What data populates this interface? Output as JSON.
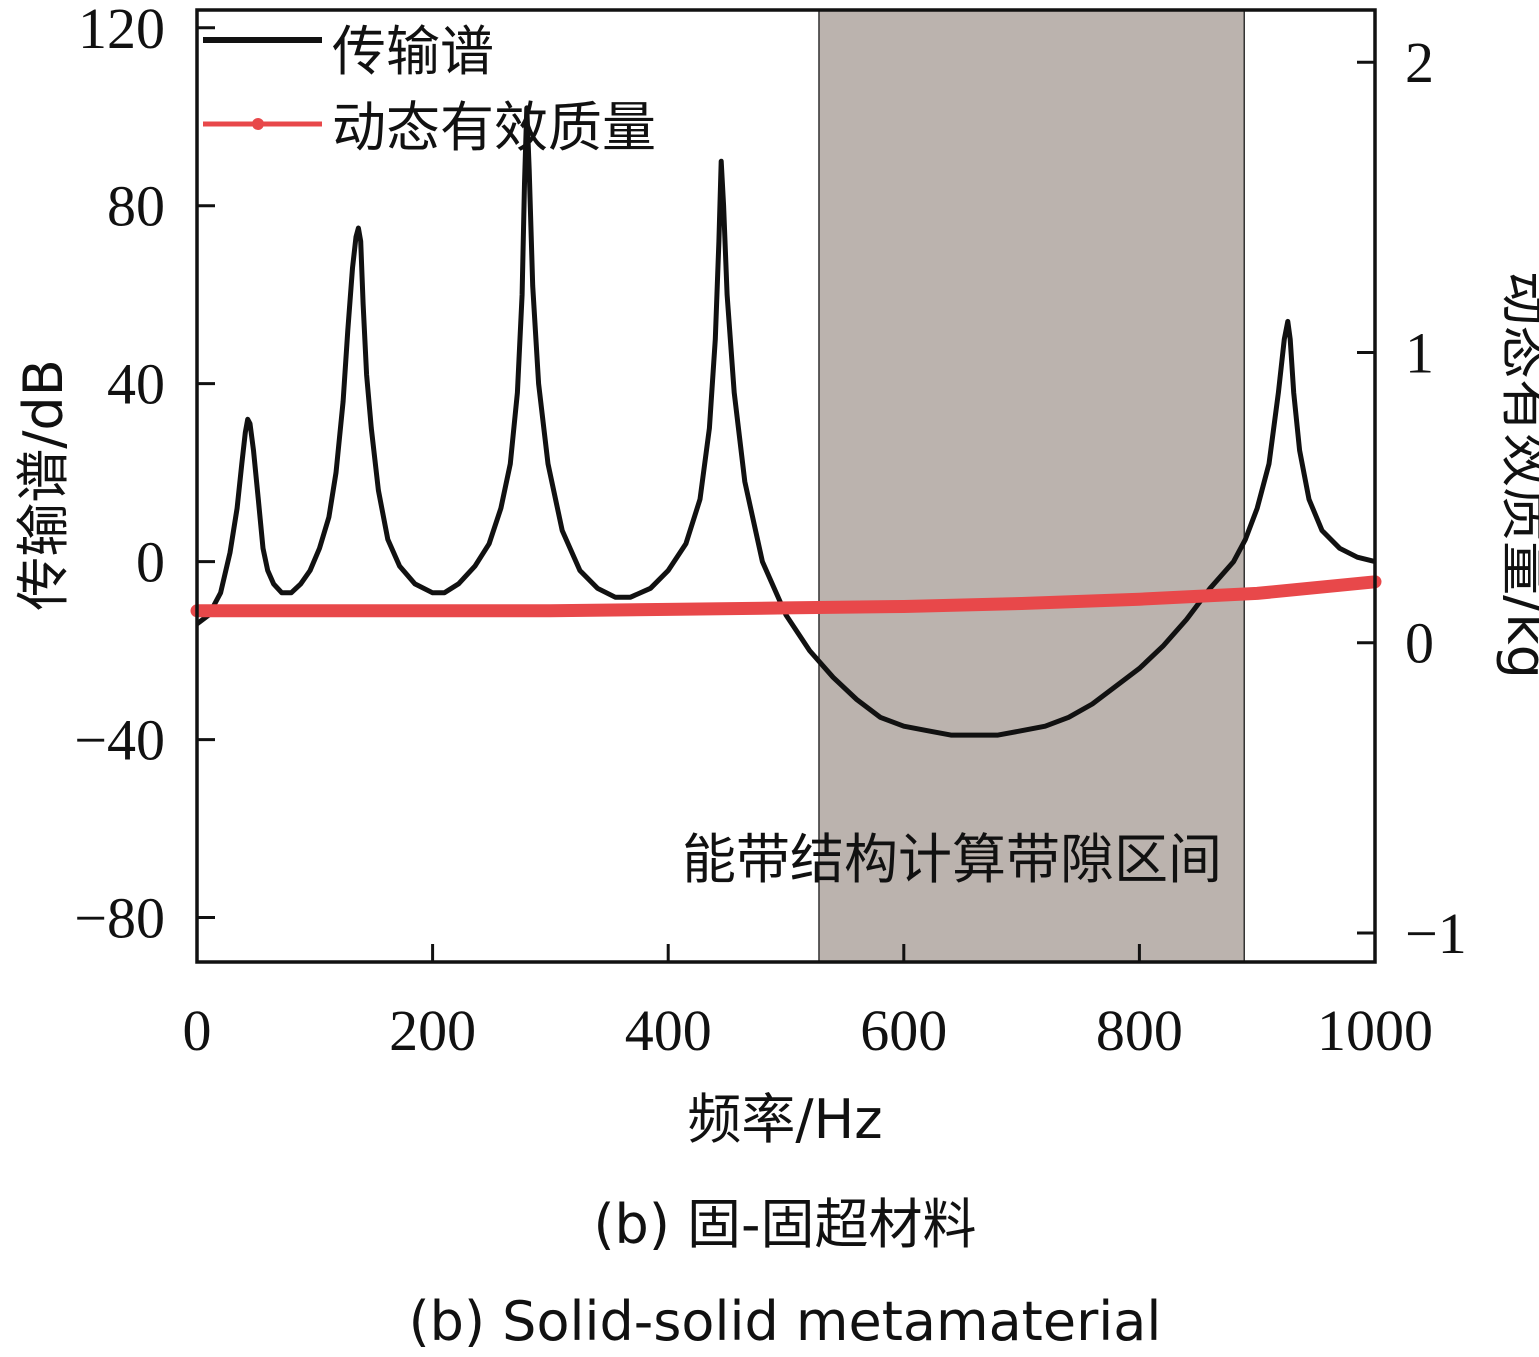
{
  "chart_data": {
    "type": "line",
    "xlabel": "频率/Hz",
    "ylabel": "传输谱/dB",
    "y2label": "动态有效质量/kg",
    "xlim": [
      0,
      1000
    ],
    "ylim": [
      -90,
      124
    ],
    "y2lim": [
      -1.1,
      2.18
    ],
    "xticks": [
      0,
      200,
      400,
      600,
      800,
      1000
    ],
    "yticks": [
      -80,
      -40,
      0,
      40,
      80,
      120
    ],
    "y2ticks": [
      -1,
      0,
      1,
      2
    ],
    "xtick_labels": [
      "0",
      "200",
      "400",
      "600",
      "800",
      "1000"
    ],
    "ytick_labels": [
      "−80",
      "−40",
      "0",
      "40",
      "80",
      "120"
    ],
    "y2tick_labels": [
      "−1",
      "0",
      "1",
      "2"
    ],
    "grid": false,
    "legend_position": "top-left",
    "band_gap": {
      "x_range": [
        528,
        889
      ],
      "label": "能带结构计算带隙区间",
      "color": "#bbb3ae"
    },
    "series": [
      {
        "name": "传输谱",
        "axis": "left",
        "color": "#111111",
        "x": [
          0,
          10,
          20,
          28,
          34,
          38,
          41,
          43,
          45,
          48,
          52,
          56,
          60,
          65,
          72,
          80,
          88,
          96,
          104,
          112,
          118,
          124,
          128,
          132,
          135,
          137,
          139,
          141,
          144,
          148,
          154,
          162,
          172,
          185,
          200,
          210,
          222,
          236,
          248,
          258,
          266,
          272,
          276,
          278,
          280,
          282,
          285,
          290,
          298,
          310,
          325,
          340,
          355,
          368,
          385,
          400,
          415,
          427,
          435,
          440,
          443,
          445,
          447,
          450,
          456,
          465,
          480,
          500,
          520,
          540,
          560,
          580,
          600,
          620,
          640,
          660,
          680,
          700,
          720,
          740,
          760,
          780,
          800,
          820,
          840,
          860,
          880,
          890,
          900,
          910,
          918,
          923,
          926,
          928,
          931,
          936,
          944,
          955,
          970,
          985,
          1000
        ],
        "y": [
          -14,
          -12,
          -7,
          2,
          12,
          22,
          29,
          32,
          31,
          25,
          14,
          3,
          -2,
          -5,
          -7,
          -7,
          -5,
          -2,
          3,
          10,
          20,
          36,
          52,
          66,
          73,
          75,
          72,
          58,
          42,
          30,
          16,
          5,
          -1,
          -5,
          -7,
          -7,
          -5,
          -1,
          4,
          12,
          22,
          38,
          60,
          85,
          102,
          88,
          62,
          40,
          22,
          7,
          -2,
          -6,
          -8,
          -8,
          -6,
          -2,
          4,
          14,
          30,
          50,
          72,
          90,
          80,
          60,
          38,
          18,
          0,
          -12,
          -20,
          -26,
          -31,
          -35,
          -37,
          -38,
          -39,
          -39,
          -39,
          -38,
          -37,
          -35,
          -32,
          -28,
          -24,
          -19,
          -13,
          -6,
          0,
          5,
          12,
          22,
          38,
          50,
          54,
          50,
          38,
          25,
          14,
          7,
          3,
          1,
          0
        ]
      },
      {
        "name": "动态有效质量",
        "axis": "right",
        "color": "#e8484a",
        "x": [
          0,
          100,
          200,
          300,
          400,
          500,
          600,
          700,
          800,
          900,
          1000
        ],
        "y": [
          0.11,
          0.11,
          0.11,
          0.11,
          0.115,
          0.12,
          0.125,
          0.135,
          0.15,
          0.17,
          0.21
        ]
      }
    ]
  },
  "caption": {
    "zh": "(b) 固-固超材料",
    "en": "(b) Solid-solid metamaterial"
  }
}
